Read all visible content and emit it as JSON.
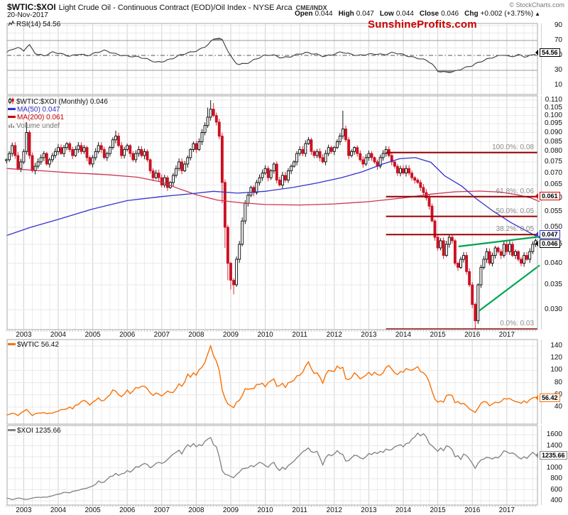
{
  "header": {
    "symbol": "$WTIC:$XOI",
    "description": "Light Crude Oil - Continuous Contract (EOD)/Oil Index - NYSE Arca",
    "exchange": "CME/INDX",
    "date": "20-Nov-2017",
    "copyright": "© StockCharts.com",
    "watermark": "SunshineProfits.com",
    "quote": {
      "open_label": "Open",
      "open": "0.044",
      "high_label": "High",
      "high": "0.047",
      "low_label": "Low",
      "low": "0.044",
      "close_label": "Close",
      "close": "0.046",
      "chg_label": "Chg",
      "chg": "+0.002 (+3.75%)",
      "chg_arrow": "▲"
    }
  },
  "colors": {
    "candle_red": "#cc1122",
    "ma50_blue": "#3333cc",
    "ma200_red": "#cc3355",
    "legend_ma200_red": "#cc0000",
    "fib_red": "#990000",
    "trend_green": "#00a651",
    "wtic_orange": "#f77208",
    "xoi_gray": "#808080",
    "rsi_line": "#3c3c3c",
    "rsi_fill": "#7d8a99",
    "grid_minor": "#ececec",
    "grid_year": "#d2d2d2",
    "panel_border": "#a8a8a8"
  },
  "time_axis": {
    "years": [
      "2003",
      "2004",
      "2005",
      "2006",
      "2007",
      "2008",
      "2009",
      "2010",
      "2011",
      "2012",
      "2013",
      "2014",
      "2015",
      "2016",
      "2017"
    ]
  },
  "chart_data": [
    {
      "id": "rsi",
      "type": "line",
      "legend": "RSI(14) 54.56",
      "last_value": "54.56",
      "yticks": [
        "90",
        "70",
        "50",
        "30",
        "10"
      ],
      "overbought": 70,
      "oversold": 30,
      "midline": 50,
      "points": [
        [
          2002.5,
          54
        ],
        [
          2002.8,
          60
        ],
        [
          2003,
          56
        ],
        [
          2003.15,
          65
        ],
        [
          2003.35,
          53
        ],
        [
          2003.6,
          50
        ],
        [
          2003.85,
          54
        ],
        [
          2004.1,
          51
        ],
        [
          2004.35,
          49
        ],
        [
          2004.6,
          53
        ],
        [
          2004.85,
          50
        ],
        [
          2005.1,
          53
        ],
        [
          2005.35,
          56
        ],
        [
          2005.6,
          53
        ],
        [
          2005.85,
          51
        ],
        [
          2006.1,
          49
        ],
        [
          2006.35,
          47
        ],
        [
          2006.6,
          44
        ],
        [
          2006.85,
          41
        ],
        [
          2007.05,
          43
        ],
        [
          2007.3,
          46
        ],
        [
          2007.55,
          50
        ],
        [
          2007.8,
          53
        ],
        [
          2008.05,
          57
        ],
        [
          2008.3,
          64
        ],
        [
          2008.5,
          72
        ],
        [
          2008.62,
          74
        ],
        [
          2008.75,
          70
        ],
        [
          2008.9,
          57
        ],
        [
          2009.05,
          44
        ],
        [
          2009.2,
          38
        ],
        [
          2009.45,
          40
        ],
        [
          2009.7,
          45
        ],
        [
          2009.95,
          49
        ],
        [
          2010.2,
          50
        ],
        [
          2010.45,
          47
        ],
        [
          2010.7,
          49
        ],
        [
          2010.95,
          52
        ],
        [
          2011.2,
          53
        ],
        [
          2011.45,
          51
        ],
        [
          2011.7,
          49
        ],
        [
          2011.95,
          52
        ],
        [
          2012.2,
          55
        ],
        [
          2012.45,
          51
        ],
        [
          2012.7,
          49
        ],
        [
          2012.95,
          52
        ],
        [
          2013.2,
          53
        ],
        [
          2013.45,
          51
        ],
        [
          2013.7,
          53
        ],
        [
          2013.95,
          51
        ],
        [
          2014.2,
          49
        ],
        [
          2014.45,
          47
        ],
        [
          2014.7,
          43
        ],
        [
          2014.85,
          37
        ],
        [
          2015,
          28
        ],
        [
          2015.25,
          27
        ],
        [
          2015.5,
          29.5
        ],
        [
          2015.7,
          33
        ],
        [
          2016,
          36
        ],
        [
          2016.3,
          42
        ],
        [
          2016.6,
          48
        ],
        [
          2016.9,
          52
        ],
        [
          2017.1,
          48
        ],
        [
          2017.35,
          50
        ],
        [
          2017.55,
          47
        ],
        [
          2017.75,
          51
        ],
        [
          2017.92,
          54.56
        ]
      ]
    },
    {
      "id": "ratio",
      "type": "candlestick",
      "legend": "$WTIC:$XOI (Monthly) 0.046",
      "ma50_legend": "MA(50) 0.047",
      "ma200_legend": "MA(200) 0.061",
      "volume_legend": "Volume undef",
      "last_close": "0.046",
      "ma50_last": "0.047",
      "ma200_last": "0.061",
      "start": "2002-07",
      "interval": "monthly",
      "yticks": [
        "0.110",
        "0.105",
        "0.100",
        "0.095",
        "0.090",
        "0.085",
        "0.080",
        "0.075",
        "0.070",
        "0.065",
        "0.060",
        "0.055",
        "0.050",
        "0.045",
        "0.040",
        "0.035",
        "0.030"
      ],
      "closes": [
        0.076,
        0.079,
        0.083,
        0.078,
        0.072,
        0.075,
        0.08,
        0.09,
        0.078,
        0.071,
        0.073,
        0.075,
        0.077,
        0.079,
        0.074,
        0.076,
        0.078,
        0.08,
        0.082,
        0.079,
        0.082,
        0.084,
        0.081,
        0.078,
        0.081,
        0.083,
        0.08,
        0.082,
        0.077,
        0.074,
        0.077,
        0.08,
        0.083,
        0.081,
        0.077,
        0.079,
        0.082,
        0.086,
        0.088,
        0.083,
        0.078,
        0.081,
        0.083,
        0.079,
        0.076,
        0.079,
        0.081,
        0.078,
        0.08,
        0.076,
        0.071,
        0.068,
        0.07,
        0.068,
        0.065,
        0.068,
        0.064,
        0.066,
        0.069,
        0.072,
        0.075,
        0.071,
        0.074,
        0.077,
        0.081,
        0.084,
        0.081,
        0.085,
        0.09,
        0.094,
        0.099,
        0.104,
        0.1,
        0.096,
        0.088,
        0.066,
        0.05,
        0.04,
        0.036,
        0.035,
        0.041,
        0.045,
        0.052,
        0.058,
        0.061,
        0.064,
        0.062,
        0.066,
        0.068,
        0.07,
        0.072,
        0.068,
        0.071,
        0.074,
        0.067,
        0.065,
        0.069,
        0.067,
        0.071,
        0.073,
        0.075,
        0.079,
        0.081,
        0.079,
        0.084,
        0.086,
        0.08,
        0.078,
        0.08,
        0.077,
        0.075,
        0.079,
        0.082,
        0.08,
        0.082,
        0.085,
        0.088,
        0.092,
        0.086,
        0.078,
        0.08,
        0.082,
        0.079,
        0.076,
        0.074,
        0.077,
        0.079,
        0.077,
        0.075,
        0.073,
        0.077,
        0.079,
        0.081,
        0.078,
        0.075,
        0.073,
        0.07,
        0.072,
        0.07,
        0.072,
        0.07,
        0.068,
        0.067,
        0.066,
        0.064,
        0.062,
        0.06,
        0.057,
        0.052,
        0.047,
        0.044,
        0.046,
        0.042,
        0.045,
        0.047,
        0.046,
        0.04,
        0.039,
        0.041,
        0.042,
        0.038,
        0.035,
        0.031,
        0.028,
        0.035,
        0.039,
        0.041,
        0.043,
        0.04,
        0.042,
        0.044,
        0.043,
        0.042,
        0.045,
        0.043,
        0.045,
        0.042,
        0.043,
        0.041,
        0.04,
        0.042,
        0.041,
        0.043,
        0.045,
        0.046
      ],
      "wick_high_overrides": {
        "7": 0.096,
        "38": 0.091,
        "70": 0.105,
        "71": 0.11,
        "72": 0.108,
        "117": 0.103
      },
      "wick_low_overrides": {
        "75": 0.058,
        "76": 0.044,
        "77": 0.036,
        "78": 0.034,
        "79": 0.033,
        "163": 0.0266
      },
      "ma50_points": [
        [
          2002.5,
          0.0475
        ],
        [
          2003.2,
          0.05
        ],
        [
          2004,
          0.0525
        ],
        [
          2005,
          0.056
        ],
        [
          2006,
          0.059
        ],
        [
          2007,
          0.0605
        ],
        [
          2007.8,
          0.0615
        ],
        [
          2008.5,
          0.0625
        ],
        [
          2009.2,
          0.0618
        ],
        [
          2010,
          0.0625
        ],
        [
          2010.8,
          0.064
        ],
        [
          2011.5,
          0.0658
        ],
        [
          2012.2,
          0.068
        ],
        [
          2012.8,
          0.0705
        ],
        [
          2013.4,
          0.074
        ],
        [
          2013.9,
          0.0765
        ],
        [
          2014.35,
          0.077
        ],
        [
          2014.8,
          0.0748
        ],
        [
          2015.2,
          0.0688
        ],
        [
          2015.7,
          0.0645
        ],
        [
          2016.1,
          0.0598
        ],
        [
          2016.6,
          0.0553
        ],
        [
          2017.1,
          0.0516
        ],
        [
          2017.55,
          0.049
        ],
        [
          2017.95,
          0.0468
        ]
      ],
      "ma200_points": [
        [
          2002.5,
          0.072
        ],
        [
          2003.5,
          0.071
        ],
        [
          2004.5,
          0.07
        ],
        [
          2005.5,
          0.0692
        ],
        [
          2006.3,
          0.0682
        ],
        [
          2007.0,
          0.0662
        ],
        [
          2007.5,
          0.0635
        ],
        [
          2008.0,
          0.0612
        ],
        [
          2008.6,
          0.0592
        ],
        [
          2009.3,
          0.0582
        ],
        [
          2010.0,
          0.0576
        ],
        [
          2011.0,
          0.0574
        ],
        [
          2012.0,
          0.0578
        ],
        [
          2013.0,
          0.0586
        ],
        [
          2014.0,
          0.06
        ],
        [
          2014.8,
          0.0614
        ],
        [
          2015.5,
          0.0623
        ],
        [
          2016.2,
          0.0626
        ],
        [
          2016.8,
          0.0622
        ],
        [
          2017.3,
          0.0612
        ],
        [
          2017.7,
          0.06
        ],
        [
          2017.95,
          0.0586
        ]
      ],
      "fib_levels": [
        {
          "label": "100.0%: 0.08",
          "value": 0.0795
        },
        {
          "label": "61.8%: 0.06",
          "value": 0.0605
        },
        {
          "label": "50.0%: 0.05",
          "value": 0.0535
        },
        {
          "label": "38.2%: 0.05",
          "value": 0.0478
        },
        {
          "label": "0.0%: 0.03",
          "value": 0.0266
        }
      ],
      "fib_start_year": 2013.5,
      "trendlines": [
        {
          "x1": 2015.6,
          "v1": 0.0444,
          "x2": 2017.95,
          "v2": 0.0472
        },
        {
          "x1": 2016.2,
          "v1": 0.0298,
          "x2": 2017.95,
          "v2": 0.0395
        }
      ]
    },
    {
      "id": "wtic",
      "type": "line",
      "legend": "$WTIC 56.42",
      "last_value": "56.42",
      "yticks": [
        "140",
        "120",
        "100",
        "80",
        "60",
        "40"
      ],
      "closes": [
        27,
        28,
        30,
        29,
        26,
        30,
        33,
        36,
        31,
        26,
        29,
        30,
        30,
        31,
        29,
        30,
        30,
        32,
        33,
        36,
        36,
        37,
        40,
        37,
        43,
        44,
        49,
        51,
        48,
        43,
        48,
        51,
        55,
        50,
        51,
        56,
        60,
        68,
        66,
        60,
        57,
        61,
        68,
        62,
        66,
        72,
        71,
        74,
        74,
        70,
        63,
        59,
        63,
        61,
        58,
        62,
        66,
        64,
        64,
        70,
        78,
        74,
        81,
        94,
        89,
        96,
        92,
        101,
        105,
        113,
        127,
        140,
        124,
        115,
        100,
        68,
        54,
        45,
        42,
        39,
        48,
        51,
        59,
        70,
        69,
        70,
        70,
        77,
        77,
        79,
        73,
        80,
        83,
        86,
        74,
        75,
        79,
        72,
        80,
        81,
        84,
        91,
        92,
        97,
        107,
        114,
        103,
        95,
        96,
        89,
        79,
        93,
        100,
        99,
        98,
        107,
        103,
        105,
        86,
        85,
        88,
        96,
        92,
        86,
        89,
        92,
        97,
        92,
        97,
        93,
        92,
        96,
        105,
        108,
        102,
        96,
        93,
        98,
        97,
        103,
        101,
        100,
        103,
        106,
        98,
        96,
        91,
        81,
        66,
        53,
        48,
        50,
        48,
        59,
        60,
        59,
        47,
        49,
        45,
        46,
        42,
        37,
        34,
        31,
        38,
        46,
        49,
        48,
        42,
        45,
        48,
        47,
        49,
        54,
        53,
        54,
        51,
        49,
        48,
        46,
        50,
        47,
        52,
        55,
        56.42
      ]
    },
    {
      "id": "xoi",
      "type": "line",
      "legend": "$XOI 1235.66",
      "last_value": "1235.66",
      "yticks": [
        "1600",
        "1400",
        "1200",
        "1000",
        "800",
        "600",
        "400"
      ],
      "closes": [
        450,
        440,
        420,
        435,
        450,
        445,
        430,
        425,
        435,
        450,
        460,
        465,
        460,
        470,
        465,
        480,
        490,
        510,
        520,
        530,
        555,
        550,
        545,
        570,
        580,
        590,
        610,
        620,
        630,
        650,
        670,
        700,
        760,
        730,
        740,
        790,
        840,
        850,
        900,
        860,
        890,
        900,
        950,
        920,
        960,
        1020,
        1010,
        1050,
        1080,
        1060,
        1000,
        1030,
        1080,
        1100,
        1080,
        1100,
        1150,
        1200,
        1250,
        1280,
        1320,
        1250,
        1350,
        1420,
        1380,
        1440,
        1380,
        1420,
        1400,
        1480,
        1520,
        1550,
        1420,
        1380,
        1200,
        950,
        880,
        870,
        840,
        820,
        880,
        920,
        980,
        990,
        1000,
        1040,
        1020,
        1060,
        1100,
        1080,
        1040,
        1010,
        1070,
        1100,
        1000,
        950,
        1010,
        970,
        1040,
        1080,
        1120,
        1180,
        1230,
        1290,
        1320,
        1360,
        1290,
        1280,
        1300,
        1180,
        1050,
        1180,
        1240,
        1220,
        1250,
        1310,
        1260,
        1240,
        1120,
        1130,
        1180,
        1230,
        1220,
        1180,
        1160,
        1200,
        1260,
        1240,
        1280,
        1260,
        1300,
        1280,
        1340,
        1320,
        1330,
        1380,
        1400,
        1420,
        1380,
        1440,
        1450,
        1520,
        1560,
        1630,
        1580,
        1620,
        1560,
        1440,
        1400,
        1350,
        1300,
        1360,
        1310,
        1400,
        1380,
        1330,
        1200,
        1220,
        1150,
        1250,
        1220,
        1160,
        1080,
        990,
        1080,
        1140,
        1160,
        1190,
        1180,
        1160,
        1190,
        1180,
        1230,
        1310,
        1290,
        1260,
        1270,
        1240,
        1190,
        1160,
        1200,
        1170,
        1230,
        1280,
        1235.66
      ]
    }
  ]
}
